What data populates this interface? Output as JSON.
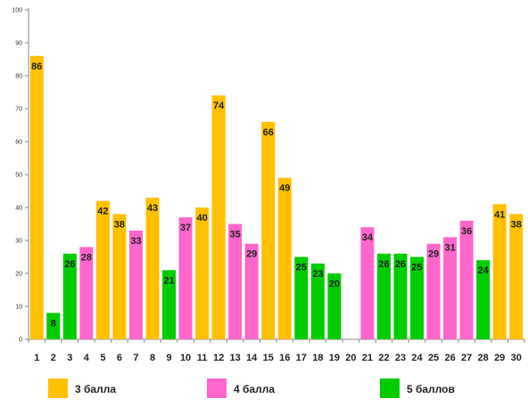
{
  "chart_data": {
    "type": "bar",
    "categories": [
      "1",
      "2",
      "3",
      "4",
      "5",
      "6",
      "7",
      "8",
      "9",
      "10",
      "11",
      "12",
      "13",
      "14",
      "15",
      "16",
      "17",
      "18",
      "19",
      "20",
      "21",
      "22",
      "23",
      "24",
      "25",
      "26",
      "27",
      "28",
      "29",
      "30"
    ],
    "values": [
      86,
      8,
      26,
      28,
      42,
      38,
      33,
      43,
      21,
      37,
      40,
      74,
      35,
      29,
      66,
      49,
      25,
      23,
      20,
      null,
      34,
      26,
      26,
      25,
      29,
      31,
      36,
      24,
      41,
      38
    ],
    "value_groups": [
      "g3",
      "g5",
      "g5",
      "g4",
      "g3",
      "g3",
      "g4",
      "g3",
      "g5",
      "g4",
      "g3",
      "g3",
      "g4",
      "g4",
      "g3",
      "g3",
      "g5",
      "g5",
      "g5",
      null,
      "g4",
      "g5",
      "g5",
      "g5",
      "g4",
      "g4",
      "g4",
      "g5",
      "g3",
      "g3"
    ],
    "groups": [
      {
        "id": "g3",
        "name": "3 балла",
        "color": "#FFC000"
      },
      {
        "id": "g4",
        "name": "4 балла",
        "color": "#FF66CC"
      },
      {
        "id": "g5",
        "name": "5 баллов",
        "color": "#00CC00"
      }
    ],
    "ylim": [
      0,
      100
    ],
    "yticks": [
      "0",
      "10",
      "20",
      "30",
      "40",
      "50",
      "60",
      "70",
      "80",
      "90",
      "100"
    ],
    "gridlines": false,
    "legend_position": "bottom",
    "title": "",
    "xlabel": "",
    "ylabel": ""
  }
}
